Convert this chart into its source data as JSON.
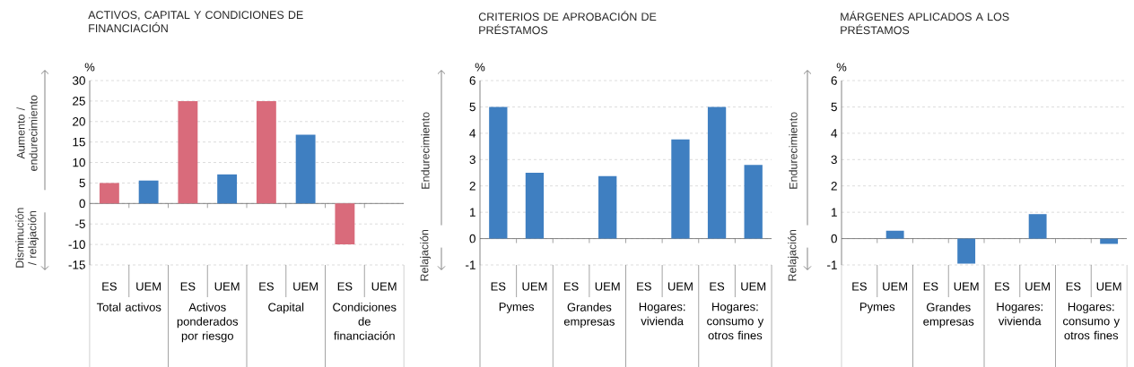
{
  "chart_data": [
    {
      "type": "bar",
      "title": "ACTIVOS, CAPITAL Y CONDICIONES DE FINANCIACIÓN",
      "ylabel": "%",
      "categories": [
        "ES",
        "UEM",
        "ES",
        "UEM",
        "ES",
        "UEM",
        "ES",
        "UEM"
      ],
      "values": [
        5,
        5.6,
        25,
        7.1,
        25,
        16.8,
        -10,
        null
      ],
      "colors": [
        "#d96b7b",
        "#3f7fc1",
        "#d96b7b",
        "#3f7fc1",
        "#d96b7b",
        "#3f7fc1",
        "#d96b7b",
        "#3f7fc1"
      ],
      "ylim": [
        -15,
        30
      ],
      "yticks": [
        -15,
        -10,
        -5,
        0,
        5,
        10,
        15,
        20,
        25,
        30
      ],
      "grid": "y",
      "annotations": [
        "Aumento / endurecimiento",
        "Disminución / relajación",
        "Total activos",
        "Activos ponderados por riesgo",
        "Capital",
        "Condiciones de financiación"
      ]
    },
    {
      "type": "bar",
      "title": "CRITERIOS DE APROBACIÓN DE PRÉSTAMOS",
      "ylabel": "%",
      "categories": [
        "ES",
        "UEM",
        "ES",
        "UEM",
        "ES",
        "UEM",
        "ES",
        "UEM"
      ],
      "values": [
        5,
        2.5,
        null,
        2.37,
        null,
        3.77,
        5,
        2.8
      ],
      "color": "#3f7fc1",
      "ylim": [
        -1,
        6
      ],
      "yticks": [
        -1,
        0,
        1,
        2,
        3,
        4,
        5,
        6
      ],
      "grid": "y",
      "annotations": [
        "Endurecimiento",
        "Relajación",
        "Pymes",
        "Grandes empresas",
        "Hogares: vivienda",
        "Hogares: consumo y otros fines"
      ]
    },
    {
      "type": "bar",
      "title": "MÁRGENES APLICADOS A LOS PRÉSTAMOS",
      "ylabel": "%",
      "categories": [
        "ES",
        "UEM",
        "ES",
        "UEM",
        "ES",
        "UEM",
        "ES",
        "UEM"
      ],
      "values": [
        null,
        0.3,
        null,
        -0.95,
        null,
        0.93,
        null,
        -0.2
      ],
      "color": "#3f7fc1",
      "ylim": [
        -1,
        6
      ],
      "yticks": [
        -1,
        0,
        1,
        2,
        3,
        4,
        5,
        6
      ],
      "grid": "y",
      "annotations": [
        "Endurecimiento",
        "Relajación",
        "Pymes",
        "Grandes empresas",
        "Hogares: vivienda",
        "Hogares: consumo y otros fines"
      ]
    }
  ]
}
